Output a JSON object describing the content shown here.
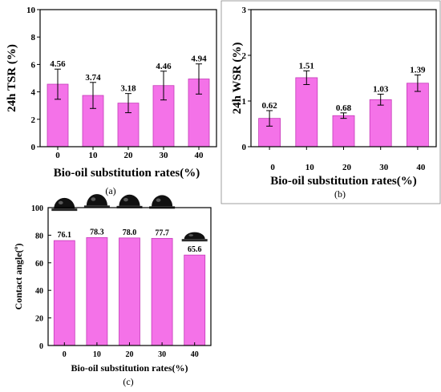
{
  "chart_data": [
    {
      "type": "bar",
      "panel_label": "(a)",
      "categories": [
        "0",
        "10",
        "20",
        "30",
        "40"
      ],
      "values": [
        4.56,
        3.74,
        3.18,
        4.46,
        4.94
      ],
      "value_labels": [
        "4.56",
        "3.74",
        "3.18",
        "4.46",
        "4.94"
      ],
      "errors": [
        1.1,
        0.95,
        0.7,
        1.05,
        1.1
      ],
      "xlabel": "Bio-oil substitution rates(%)",
      "ylabel": "24h TSR (%)",
      "ylim": [
        0,
        10
      ],
      "yticks": [
        "0",
        "2",
        "4",
        "6",
        "8",
        "10"
      ],
      "color": "#f472e8"
    },
    {
      "type": "bar",
      "panel_label": "(b)",
      "categories": [
        "0",
        "10",
        "20",
        "30",
        "40"
      ],
      "values": [
        0.62,
        1.51,
        0.68,
        1.03,
        1.39
      ],
      "value_labels": [
        "0.62",
        "1.51",
        "0.68",
        "1.03",
        "1.39"
      ],
      "errors": [
        0.17,
        0.15,
        0.06,
        0.12,
        0.18
      ],
      "xlabel": "Bio-oil substitution rates(%)",
      "ylabel": "24h WSR (%)",
      "ylim": [
        0,
        3
      ],
      "yticks": [
        "0",
        "1",
        "2",
        "3"
      ],
      "color": "#f472e8"
    },
    {
      "type": "bar",
      "panel_label": "(c)",
      "categories": [
        "0",
        "10",
        "20",
        "30",
        "40"
      ],
      "values": [
        76.1,
        78.3,
        78.0,
        77.7,
        65.6
      ],
      "value_labels": [
        "76.1",
        "78.3",
        "78.0",
        "77.7",
        "65.6"
      ],
      "xlabel": "Bio-oil substitution rates(%)",
      "ylabel": "Contact angle(º)",
      "ylim": [
        0,
        100
      ],
      "yticks": [
        "0",
        "20",
        "40",
        "60",
        "80",
        "100"
      ],
      "color": "#f472e8"
    }
  ]
}
